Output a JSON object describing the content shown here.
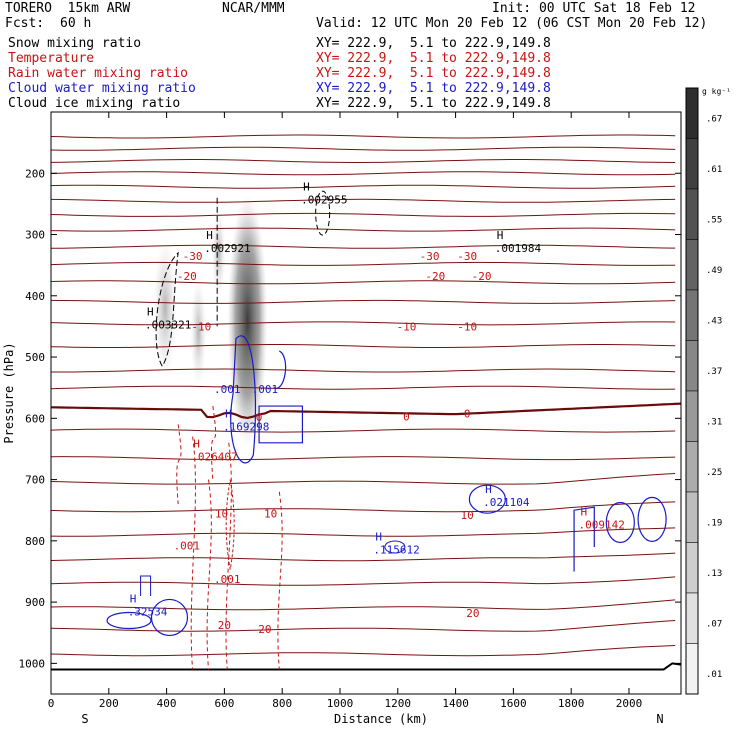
{
  "header": {
    "model": "TORERO  15km ARW",
    "org": "NCAR/MMM",
    "init": "Init: 00 UTC Sat 18 Feb 12",
    "fcst_label": "Fcst:",
    "fcst_value": "60 h",
    "valid": "Valid: 12 UTC Mon 20 Feb 12 (06 CST Mon 20 Feb 12)"
  },
  "fields": [
    {
      "name": "Snow mixing ratio",
      "xy": "XY= 222.9,  5.1 to 222.9,149.8",
      "color": "#000000"
    },
    {
      "name": "Temperature",
      "xy": "XY= 222.9,  5.1 to 222.9,149.8",
      "color": "#c81414"
    },
    {
      "name": "Rain water mixing ratio",
      "xy": "XY= 222.9,  5.1 to 222.9,149.8",
      "color": "#c81414"
    },
    {
      "name": "Cloud water mixing ratio",
      "xy": "XY= 222.9,  5.1 to 222.9,149.8",
      "color": "#1a1ac8"
    },
    {
      "name": "Cloud ice mixing ratio",
      "xy": "XY= 222.9,  5.1 to 222.9,149.8",
      "color": "#000000"
    }
  ],
  "chart_data": {
    "type": "cross-section",
    "xlabel": "Distance (km)",
    "ylabel": "Pressure (hPa)",
    "x_ticks": [
      0,
      200,
      400,
      600,
      800,
      1000,
      1200,
      1400,
      1600,
      1800,
      2000
    ],
    "y_ticks": [
      200,
      300,
      400,
      500,
      600,
      700,
      800,
      900,
      1000
    ],
    "xlim": [
      0,
      2180
    ],
    "ylim": [
      1050,
      100
    ],
    "x_end_labels": {
      "left": "S",
      "right": "N"
    },
    "colorbar": {
      "unit": "g kg⁻¹",
      "ticks": [
        ".67",
        ".61",
        ".55",
        ".49",
        ".43",
        ".37",
        ".31",
        ".25",
        ".19",
        ".13",
        ".07",
        ".01"
      ]
    },
    "isotherm_labels": [
      {
        "text": "-30",
        "x": 490,
        "p": 335
      },
      {
        "text": "-30",
        "x": 1310,
        "p": 335
      },
      {
        "text": "-30",
        "x": 1440,
        "p": 335
      },
      {
        "text": "-20",
        "x": 470,
        "p": 368
      },
      {
        "text": "-20",
        "x": 1330,
        "p": 368
      },
      {
        "text": "-20",
        "x": 1490,
        "p": 368
      },
      {
        "text": "-10",
        "x": 520,
        "p": 450
      },
      {
        "text": "-10",
        "x": 1230,
        "p": 450
      },
      {
        "text": "-10",
        "x": 1440,
        "p": 450
      },
      {
        "text": "0",
        "x": 720,
        "p": 598
      },
      {
        "text": "0",
        "x": 1230,
        "p": 597
      },
      {
        "text": "0",
        "x": 1440,
        "p": 592
      },
      {
        "text": "10",
        "x": 590,
        "p": 755
      },
      {
        "text": "10",
        "x": 760,
        "p": 755
      },
      {
        "text": "10",
        "x": 1440,
        "p": 758
      },
      {
        "text": "20",
        "x": 600,
        "p": 937
      },
      {
        "text": "20",
        "x": 740,
        "p": 944
      },
      {
        "text": "20",
        "x": 1460,
        "p": 918
      }
    ],
    "maxima_labels": [
      {
        "mark": "H",
        "value": ".003321",
        "x": 360,
        "p": 447,
        "color": "#000000"
      },
      {
        "mark": "H",
        "value": ".002921",
        "x": 565,
        "p": 322,
        "color": "#000000"
      },
      {
        "mark": "H",
        "value": ".002955",
        "x": 900,
        "p": 243,
        "color": "#000000"
      },
      {
        "mark": "H",
        "value": ".001984",
        "x": 1570,
        "p": 322,
        "color": "#000000"
      },
      {
        "mark": "H",
        "value": ".169298",
        "x": 630,
        "p": 613,
        "color": "#1a1ac8"
      },
      {
        "mark": "H",
        "value": ".026407",
        "x": 520,
        "p": 662,
        "color": "#c81414"
      },
      {
        "mark": "H",
        "value": ".021104",
        "x": 1530,
        "p": 737,
        "color": "#1a1ac8"
      },
      {
        "mark": "H",
        "value": ".115612",
        "x": 1150,
        "p": 814,
        "color": "#1a1ac8"
      },
      {
        "mark": "H",
        "value": ".32534",
        "x": 300,
        "p": 915,
        "color": "#1a1ac8"
      },
      {
        "mark": "H",
        "value": ".009142",
        "x": 1860,
        "p": 773,
        "color": "#c81414"
      }
    ],
    "contour_labels": [
      {
        "text": ".001",
        "x": 610,
        "p": 552,
        "color": "#1a1ac8"
      },
      {
        "text": ".001",
        "x": 740,
        "p": 552,
        "color": "#1a1ac8"
      },
      {
        "text": ".001",
        "x": 470,
        "p": 808,
        "color": "#c81414"
      },
      {
        "text": ".001",
        "x": 610,
        "p": 862,
        "color": "#c81414"
      }
    ]
  }
}
